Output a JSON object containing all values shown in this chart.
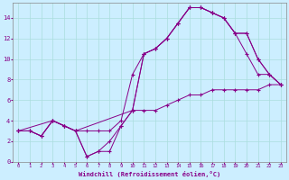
{
  "xlabel": "Windchill (Refroidissement éolien,°C)",
  "background_color": "#cceeff",
  "line_color": "#880088",
  "grid_color": "#aadddd",
  "xlim": [
    -0.5,
    23.5
  ],
  "ylim": [
    0,
    15.5
  ],
  "xticks": [
    0,
    1,
    2,
    3,
    4,
    5,
    6,
    7,
    8,
    9,
    10,
    11,
    12,
    13,
    14,
    15,
    16,
    17,
    18,
    19,
    20,
    21,
    22,
    23
  ],
  "yticks": [
    0,
    2,
    4,
    6,
    8,
    10,
    12,
    14
  ],
  "curves": [
    {
      "x": [
        0,
        1,
        2,
        3,
        4,
        5,
        6,
        7,
        8,
        9,
        10,
        11,
        12,
        13,
        14,
        15,
        16,
        17,
        18,
        19,
        20,
        21,
        22,
        23
      ],
      "y": [
        3.0,
        3.0,
        2.5,
        4.0,
        3.5,
        3.0,
        0.5,
        1.0,
        1.0,
        3.5,
        5.0,
        5.0,
        5.0,
        5.5,
        6.0,
        6.5,
        6.5,
        7.0,
        7.0,
        7.0,
        7.0,
        7.0,
        7.5,
        7.5
      ]
    },
    {
      "x": [
        0,
        1,
        2,
        3,
        4,
        5,
        6,
        7,
        8,
        9,
        10,
        11,
        12,
        13,
        14,
        15,
        16,
        17,
        18,
        19,
        20,
        21,
        22,
        23
      ],
      "y": [
        3.0,
        3.0,
        2.5,
        4.0,
        3.5,
        3.0,
        3.0,
        3.0,
        3.0,
        4.0,
        8.5,
        10.5,
        11.0,
        12.0,
        13.5,
        15.0,
        15.0,
        14.5,
        14.0,
        12.5,
        10.5,
        8.5,
        8.5,
        7.5
      ]
    },
    {
      "x": [
        0,
        1,
        2,
        3,
        4,
        5,
        6,
        7,
        8,
        9,
        10,
        11,
        12,
        13,
        14,
        15,
        16,
        17,
        18,
        19,
        20,
        21,
        22,
        23
      ],
      "y": [
        3.0,
        3.0,
        2.5,
        4.0,
        3.5,
        3.0,
        0.5,
        1.0,
        2.0,
        3.5,
        5.0,
        10.5,
        11.0,
        12.0,
        13.5,
        15.0,
        15.0,
        14.5,
        14.0,
        12.5,
        12.5,
        10.0,
        8.5,
        7.5
      ]
    },
    {
      "x": [
        0,
        3,
        4,
        5,
        10,
        11,
        12,
        13,
        14,
        15,
        16,
        17,
        18,
        19,
        20,
        21,
        22,
        23
      ],
      "y": [
        3.0,
        4.0,
        3.5,
        3.0,
        5.0,
        10.5,
        11.0,
        12.0,
        13.5,
        15.0,
        15.0,
        14.5,
        14.0,
        12.5,
        12.5,
        10.0,
        8.5,
        7.5
      ]
    }
  ]
}
